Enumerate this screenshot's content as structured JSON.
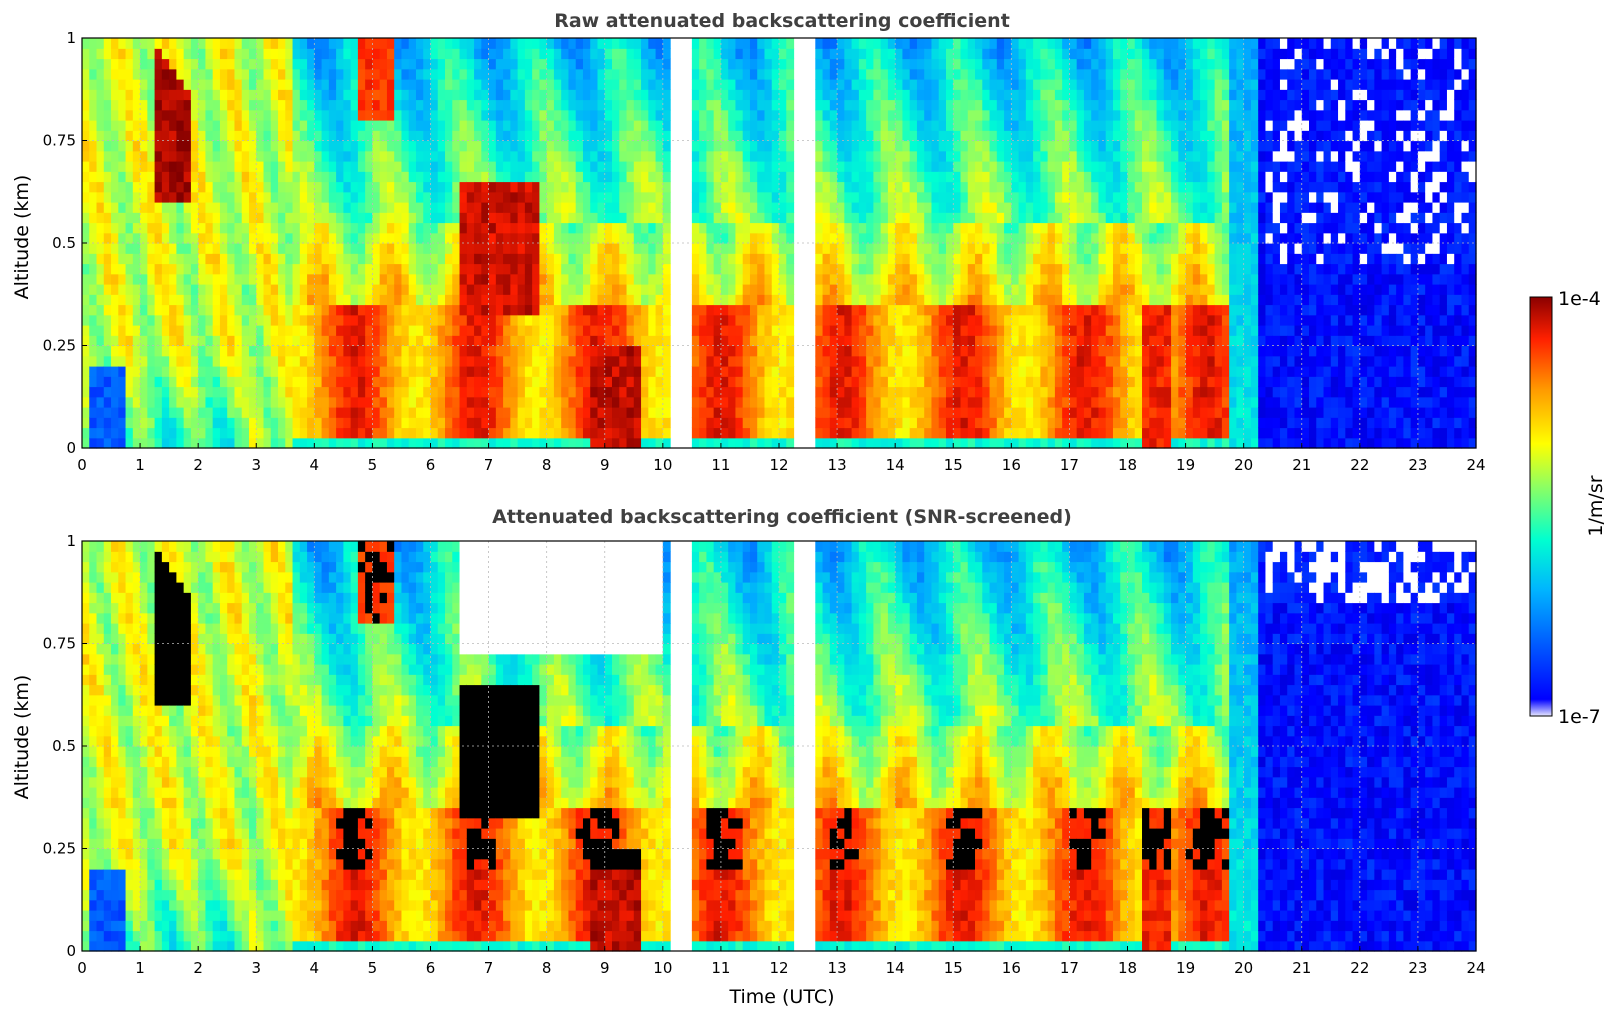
{
  "chart_data": [
    {
      "type": "heatmap",
      "title": "Raw attenuated backscattering coefficient",
      "xlabel": "",
      "ylabel": "Altitude (km)",
      "xlim": [
        0,
        24
      ],
      "ylim": [
        0,
        1
      ],
      "x_ticks": [
        "0",
        "1",
        "2",
        "3",
        "4",
        "5",
        "6",
        "7",
        "8",
        "9",
        "10",
        "11",
        "12",
        "13",
        "14",
        "15",
        "16",
        "17",
        "18",
        "19",
        "20",
        "21",
        "22",
        "23",
        "24"
      ],
      "y_ticks": [
        "0",
        "0.25",
        "0.5",
        "0.75",
        "1"
      ],
      "grid": true,
      "colorscale": "jet",
      "data_gaps_utc": [
        [
          10.15,
          10.55
        ],
        [
          12.3,
          12.65
        ]
      ],
      "features": [
        {
          "description": "dense aerosol layer, red",
          "x_utc": [
            3.6,
            20.0
          ],
          "altitude_km": [
            0,
            0.35
          ]
        },
        {
          "description": "cloud, dark red",
          "x_utc": [
            1.3,
            1.8
          ],
          "altitude_km": [
            0.6,
            1.0
          ]
        },
        {
          "description": "cloud, dark red",
          "x_utc": [
            6.5,
            7.9
          ],
          "altitude_km": [
            0.3,
            0.65
          ]
        },
        {
          "description": "low signal, blue",
          "x_utc": [
            20.2,
            24
          ],
          "altitude_km": [
            0,
            1.0
          ]
        }
      ]
    },
    {
      "type": "heatmap",
      "title": "Attenuated backscattering coefficient (SNR-screened)",
      "xlabel": "Time (UTC)",
      "ylabel": "Altitude (km)",
      "xlim": [
        0,
        24
      ],
      "ylim": [
        0,
        1
      ],
      "x_ticks": [
        "0",
        "1",
        "2",
        "3",
        "4",
        "5",
        "6",
        "7",
        "8",
        "9",
        "10",
        "11",
        "12",
        "13",
        "14",
        "15",
        "16",
        "17",
        "18",
        "19",
        "20",
        "21",
        "22",
        "23",
        "24"
      ],
      "y_ticks": [
        "0",
        "0.25",
        "0.5",
        "0.75",
        "1"
      ],
      "grid": true,
      "colorscale": "jet",
      "data_gaps_utc": [
        [
          10.15,
          10.55
        ],
        [
          12.3,
          12.65
        ]
      ],
      "features": [
        {
          "description": "screened-out region, white",
          "x_utc": [
            6.5,
            10.0
          ],
          "altitude_km": [
            0.7,
            1.0
          ]
        },
        {
          "description": "saturated cloud returns, black",
          "x_utc": [
            6.6,
            10.0
          ],
          "altitude_km": [
            0.2,
            0.65
          ]
        }
      ]
    }
  ],
  "colorbar": {
    "max_label": "1e-4",
    "min_label": "1e-7",
    "unit_label": "1/m/sr",
    "scale": "log"
  }
}
